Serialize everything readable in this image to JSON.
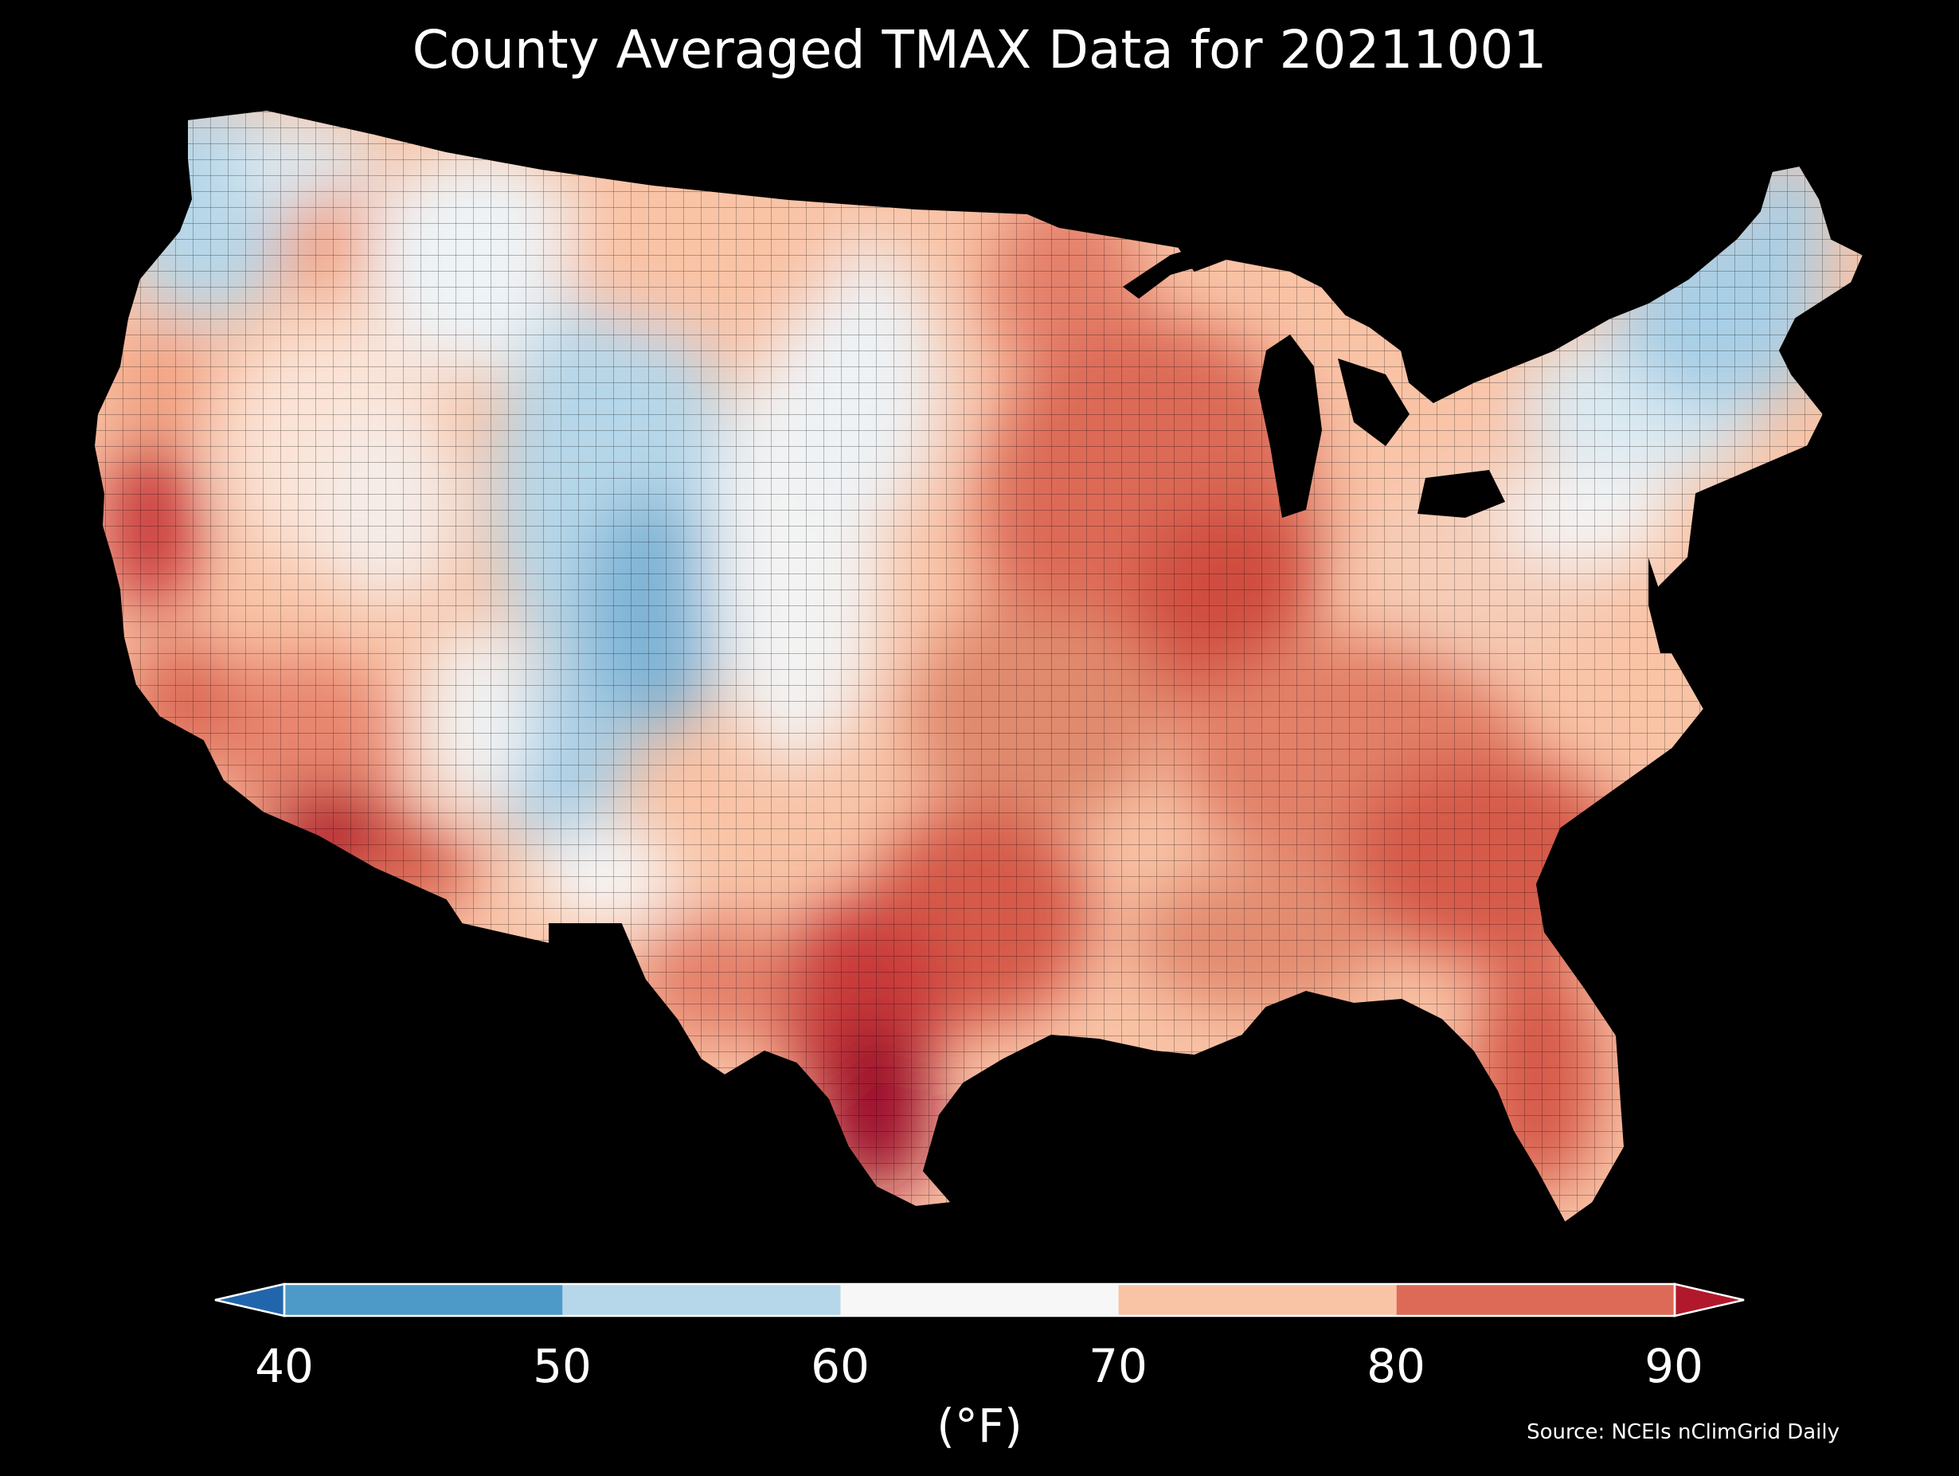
{
  "title": "County Averaged TMAX Data for 20211001",
  "colorbar": {
    "label": "(°F)",
    "ticks": [
      "40",
      "50",
      "60",
      "70",
      "80",
      "90"
    ],
    "bins": [
      {
        "range": "<40",
        "color": "#2166ac"
      },
      {
        "range": "40-50",
        "color": "#4d9ac9"
      },
      {
        "range": "50-60",
        "color": "#b6d7e9"
      },
      {
        "range": "60-70",
        "color": "#f7f7f7"
      },
      {
        "range": "70-80",
        "color": "#f9c3a6"
      },
      {
        "range": "80-90",
        "color": "#dc6a57"
      },
      {
        "range": ">90",
        "color": "#b2182b"
      }
    ]
  },
  "source": "Source: NCEIs nClimGrid Daily",
  "map": {
    "type": "choropleth",
    "region": "Contiguous United States counties",
    "variable": "TMAX",
    "date": "20211001",
    "units": "°F",
    "regional_pattern": [
      {
        "region": "Pacific Northwest",
        "bin": "50-60"
      },
      {
        "region": "New England",
        "bin": "50-60"
      },
      {
        "region": "Rocky Mountains / Colorado",
        "bin": "40-60"
      },
      {
        "region": "Great Basin",
        "bin": "60-70"
      },
      {
        "region": "Northern Plains",
        "bin": "70-80"
      },
      {
        "region": "Upper Midwest / Iowa-Missouri",
        "bin": "80-90"
      },
      {
        "region": "Mid-Atlantic",
        "bin": "60-70"
      },
      {
        "region": "Southeast",
        "bin": "80-90"
      },
      {
        "region": "Texas / South Texas",
        "bin": ">90"
      },
      {
        "region": "Desert Southwest",
        "bin": ">90"
      },
      {
        "region": "Florida",
        "bin": "80-90"
      },
      {
        "region": "California coast",
        "bin": "80-90"
      }
    ]
  }
}
